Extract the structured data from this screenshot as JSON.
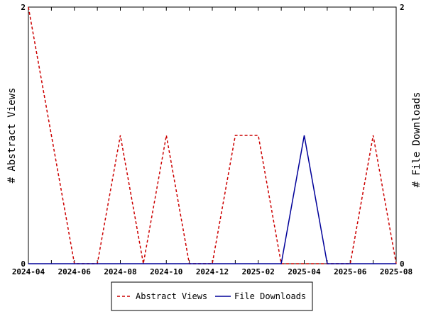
{
  "chart_data": {
    "type": "line",
    "x": [
      "2024-04",
      "2024-05",
      "2024-06",
      "2024-07",
      "2024-08",
      "2024-09",
      "2024-10",
      "2024-11",
      "2024-12",
      "2025-01",
      "2025-02",
      "2025-03",
      "2025-04",
      "2025-05",
      "2025-06",
      "2025-07",
      "2025-08"
    ],
    "x_tick_labels": [
      "2024-04",
      "2024-06",
      "2024-08",
      "2024-10",
      "2024-12",
      "2025-02",
      "2025-04",
      "2025-06",
      "2025-08"
    ],
    "series": [
      {
        "name": "Abstract Views",
        "axis": "left",
        "color": "#cc0000",
        "dash": "dashed",
        "values": [
          2,
          1,
          0,
          0,
          1,
          0,
          1,
          0,
          0,
          1,
          1,
          0,
          0,
          0,
          0,
          1,
          0
        ]
      },
      {
        "name": "File Downloads",
        "axis": "right",
        "color": "#000099",
        "dash": "solid",
        "values": [
          0,
          0,
          0,
          0,
          0,
          0,
          0,
          0,
          0,
          0,
          0,
          0,
          1,
          0,
          0,
          0,
          0
        ]
      }
    ],
    "ylabel_left": "# Abstract Views",
    "ylabel_right": "# File Downloads",
    "ylim": [
      0,
      2
    ],
    "y_tick_labels_left": [
      "0",
      "2"
    ],
    "y_tick_labels_right": [
      "0",
      "2"
    ],
    "grid": false,
    "legend_position": "bottom-center"
  }
}
